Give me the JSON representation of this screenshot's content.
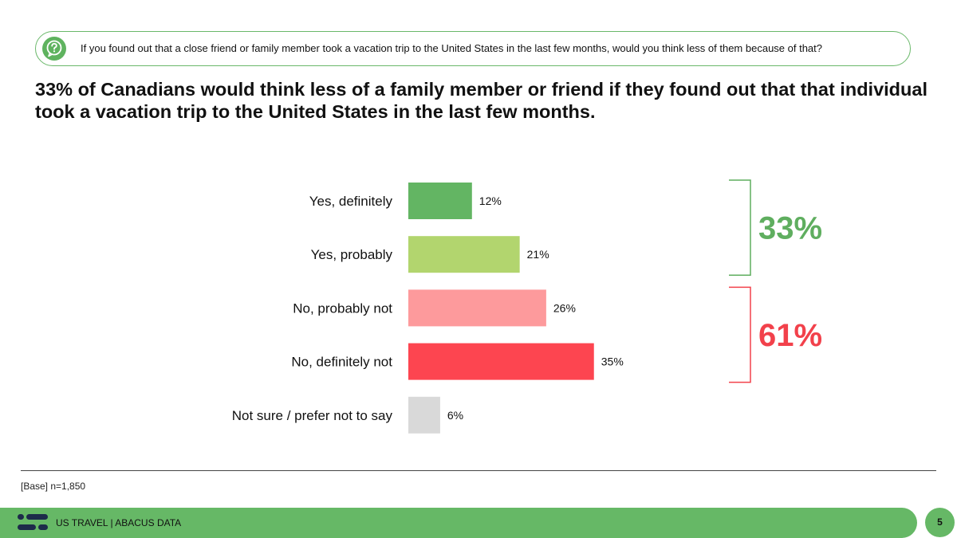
{
  "question": {
    "icon": "question-bubble-icon",
    "text": "If you found out that a close friend or family member took a vacation trip to the United States in the last few months, would you think less of them because of that?"
  },
  "headline": "33% of Canadians would think less of a family member or friend if they found out that that individual took a vacation trip to the United States in the last few months.",
  "chart_data": {
    "type": "bar",
    "orientation": "horizontal",
    "categories": [
      "Yes, definitely",
      "Yes, probably",
      "No, probably not",
      "No, definitely not",
      "Not sure / prefer not to say"
    ],
    "values": [
      12,
      21,
      26,
      35,
      6
    ],
    "value_labels": [
      "12%",
      "21%",
      "26%",
      "35%",
      "6%"
    ],
    "colors": [
      "#63b563",
      "#b2d56e",
      "#fd9a9c",
      "#fd4550",
      "#d9d9d9"
    ],
    "title": "",
    "xlabel": "",
    "ylabel": "",
    "xlim": [
      0,
      100
    ],
    "grid": false,
    "legend": "none",
    "groups": [
      {
        "label": "33%",
        "categories": [
          0,
          1
        ],
        "color": "#5fae5f"
      },
      {
        "label": "61%",
        "categories": [
          2,
          3
        ],
        "color": "#f2414b"
      }
    ]
  },
  "base_note": "[Base] n=1,850",
  "footer": {
    "logo": "abacus-logo-icon",
    "text": "US TRAVEL  |  ABACUS DATA",
    "page_number": "5",
    "accent": "#66b866"
  }
}
